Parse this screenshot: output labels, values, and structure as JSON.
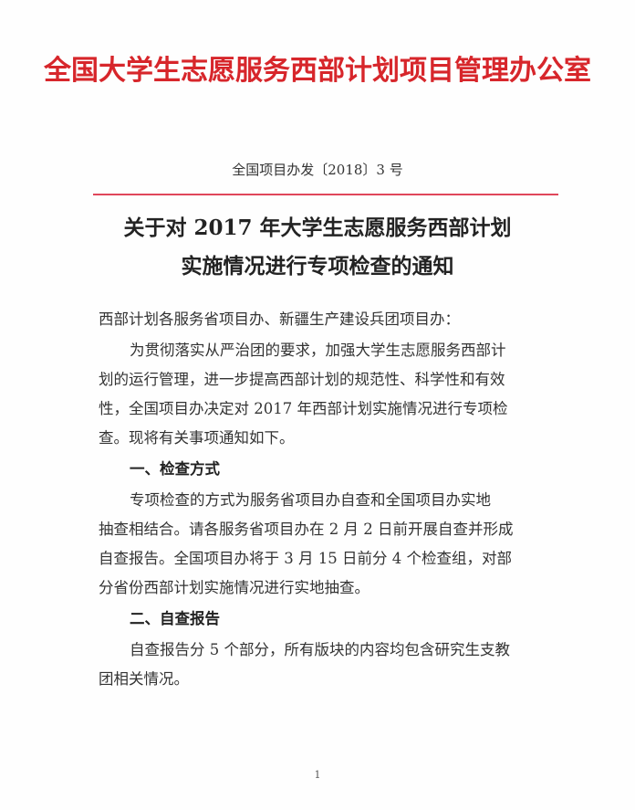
{
  "header": {
    "organization": "全国大学生志愿服务西部计划项目管理办公室"
  },
  "document": {
    "number": "全国项目办发〔2018〕3 号",
    "title_lines": [
      "关于对 2017 年大学生志愿服务西部计划",
      "实施情况进行专项检查的通知"
    ],
    "salutation": "西部计划各服务省项目办、新疆生产建设兵团项目办：",
    "intro_lines": [
      "为贯彻落实从严治团的要求，加强大学生志愿服务西部计",
      "划的运行管理，进一步提高西部计划的规范性、科学性和有效",
      "性，全国项目办决定对 2017 年西部计划实施情况进行专项检",
      "查。现将有关事项通知如下。"
    ],
    "sections": [
      {
        "heading": "一、检查方式",
        "lines": [
          "专项检查的方式为服务省项目办自查和全国项目办实地",
          "抽查相结合。请各服务省项目办在 2 月 2 日前开展自查并形成",
          "自查报告。全国项目办将于 3 月 15 日前分 4 个检查组，对部",
          "分省份西部计划实施情况进行实地抽查。"
        ]
      },
      {
        "heading": "二、自查报告",
        "lines": [
          "自查报告分 5 个部分，所有版块的内容均包含研究生支教",
          "团相关情况。"
        ]
      }
    ]
  },
  "footer": {
    "page_number": "1"
  }
}
